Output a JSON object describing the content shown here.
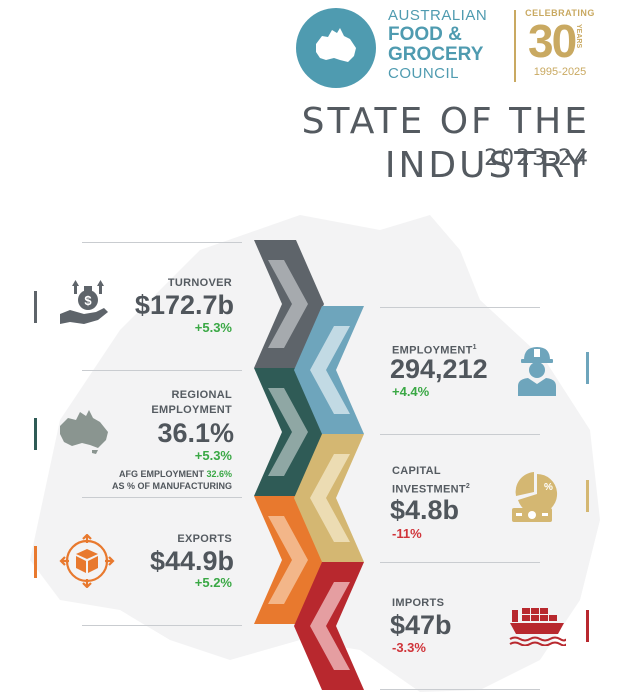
{
  "header": {
    "logo_line1": "AUSTRALIAN",
    "logo_line2": "FOOD &",
    "logo_line3": "GROCERY",
    "logo_line4": "COUNCIL",
    "celebrating": "CELEBRATING",
    "anniversary": "30",
    "anniversary_suffix": "YEARS",
    "years_range": "1995-2025",
    "title": "STATE OF THE INDUSTRY",
    "subtitle": "2023-24"
  },
  "stats": {
    "turnover": {
      "label": "TURNOVER",
      "value": "$172.7b",
      "change": "+5.3%"
    },
    "regional_employment": {
      "label_line1": "REGIONAL",
      "label_line2": "EMPLOYMENT",
      "value": "36.1%",
      "change": "+5.3%",
      "note_line1_prefix": "AFG EMPLOYMENT ",
      "note_line1_value": "32.6%",
      "note_line2": "AS % OF MANUFACTURING"
    },
    "exports": {
      "label": "EXPORTS",
      "value": "$44.9b",
      "change": "+5.2%"
    },
    "employment": {
      "label": "EMPLOYMENT",
      "footnote": "1",
      "value": "294,212",
      "change": "+4.4%"
    },
    "capital_investment": {
      "label_line1": "CAPITAL",
      "label_line2": "INVESTMENT",
      "footnote": "2",
      "value": "$4.8b",
      "change": "-11%"
    },
    "imports": {
      "label": "IMPORTS",
      "value": "$47b",
      "change": "-3.3%"
    }
  },
  "colors": {
    "turnover": "#5e646a",
    "regional_employment": "#2f5b56",
    "exports": "#e8792e",
    "employment": "#6ea5bc",
    "capital_investment": "#d4b772",
    "imports": "#b8282e",
    "brand_blue": "#4f9bb0",
    "brand_gold": "#c9a961",
    "positive": "#3aa845",
    "negative": "#d0343a"
  },
  "icons": {
    "turnover": "hand-money-bag-icon",
    "regional_employment": "australia-map-icon",
    "exports": "package-arrows-icon",
    "employment": "worker-icon",
    "capital_investment": "pie-chart-cash-icon",
    "imports": "cargo-ship-icon"
  }
}
